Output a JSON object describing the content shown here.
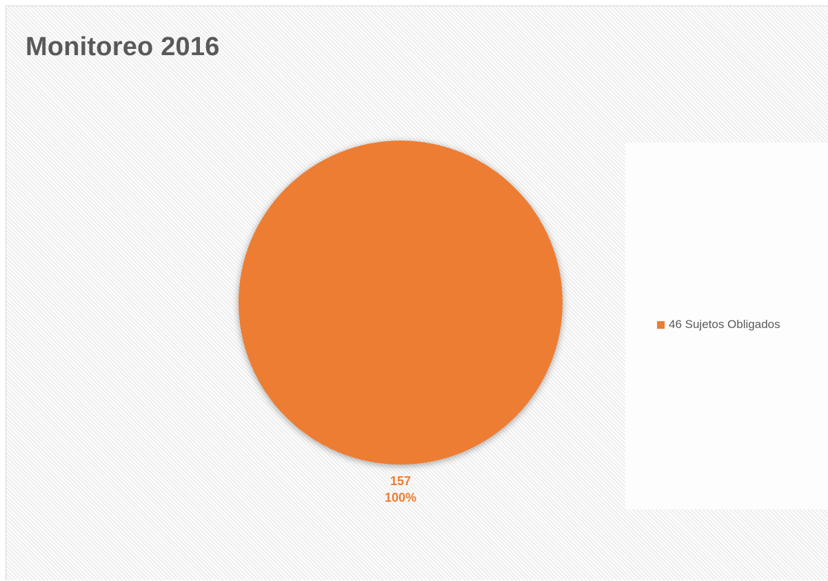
{
  "chart_data": {
    "type": "pie",
    "title": "Monitoreo 2016",
    "categories": [
      "46 Sujetos Obligados"
    ],
    "values": [
      157
    ],
    "percentages": [
      "100%"
    ],
    "data_labels": [
      {
        "value": "157",
        "percent": "100%"
      }
    ],
    "colors": [
      "#ed7d31"
    ],
    "legend": {
      "position": "right",
      "entries": [
        "46 Sujetos Obligados"
      ]
    }
  }
}
